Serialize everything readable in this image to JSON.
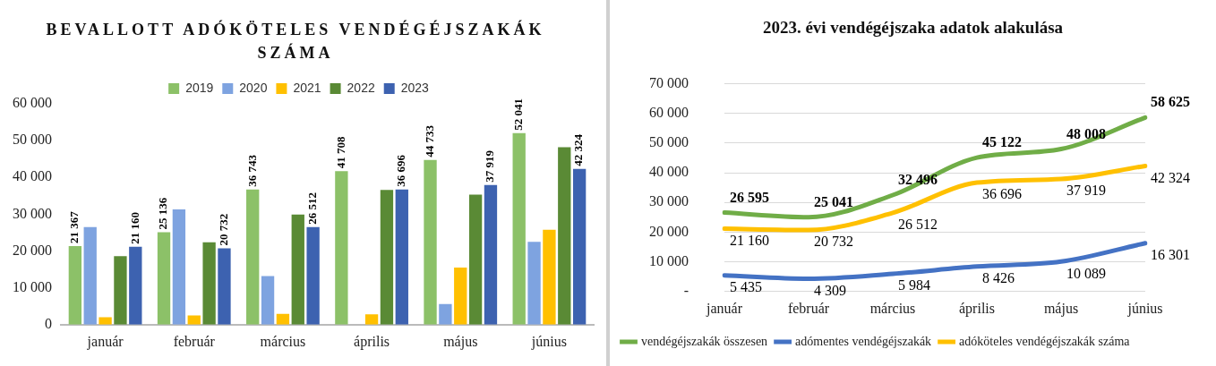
{
  "chart_data": [
    {
      "type": "bar",
      "title": "BEVALLOTT ADÓKÖTELES VENDÉGÉJSZAKÁK SZÁMA",
      "categories": [
        "január",
        "február",
        "március",
        "április",
        "május",
        "június"
      ],
      "series": [
        {
          "name": "2019",
          "color": "#8cc168",
          "values": [
            21367,
            25136,
            36743,
            41708,
            44733,
            52041
          ],
          "value_labels": [
            "21 367",
            "25 136",
            "36 743",
            "41 708",
            "44 733",
            "52 041"
          ]
        },
        {
          "name": "2020",
          "color": "#7ea3e0",
          "values": [
            26500,
            31300,
            13200,
            0,
            5600,
            22500
          ]
        },
        {
          "name": "2021",
          "color": "#ffc000",
          "values": [
            2000,
            2500,
            2900,
            2800,
            15500,
            25800
          ]
        },
        {
          "name": "2022",
          "color": "#5a8a35",
          "values": [
            18600,
            22400,
            29900,
            36600,
            35300,
            48200
          ]
        },
        {
          "name": "2023",
          "color": "#3d62b0",
          "values": [
            21160,
            20732,
            26512,
            36696,
            37919,
            42324
          ],
          "value_labels": [
            "21 160",
            "20 732",
            "26 512",
            "36 696",
            "37 919",
            "42 324"
          ]
        }
      ],
      "ylim": [
        0,
        60000
      ],
      "yticks": [
        0,
        {
          "value": 10000,
          "label": "10 000"
        },
        {
          "value": 20000,
          "label": "20 000"
        },
        {
          "value": 30000,
          "label": "30 000"
        },
        {
          "value": 40000,
          "label": "40 000"
        },
        {
          "value": 50000,
          "label": "50 000"
        },
        {
          "value": 60000,
          "label": "60 000"
        }
      ],
      "grid": false,
      "legend": "top"
    },
    {
      "type": "line",
      "title": "2023. évi vendégéjszaka adatok alakulása",
      "categories": [
        "január",
        "február",
        "március",
        "április",
        "május",
        "június"
      ],
      "series": [
        {
          "name": "vendégéjszakák összesen",
          "color": "#70ad47",
          "values": [
            26595,
            25041,
            32496,
            45122,
            48008,
            58625
          ],
          "value_labels": [
            "26 595",
            "25 041",
            "32 496",
            "45 122",
            "48 008",
            "58 625"
          ]
        },
        {
          "name": "adómentes vendégéjszakák",
          "color": "#4472c4",
          "values": [
            5435,
            4309,
            5984,
            8426,
            10089,
            16301
          ],
          "value_labels": [
            "5 435",
            "4 309",
            "5 984",
            "8 426",
            "10 089",
            "16 301"
          ]
        },
        {
          "name": "adóköteles vendégéjszakák száma",
          "color": "#ffc000",
          "values": [
            21160,
            20732,
            26512,
            36696,
            37919,
            42324
          ],
          "value_labels": [
            "21 160",
            "20 732",
            "26 512",
            "36 696",
            "37 919",
            "42 324"
          ]
        }
      ],
      "ylim": [
        0,
        70000
      ],
      "yticks": [
        {
          "value": 0,
          "label": "-"
        },
        {
          "value": 10000,
          "label": "10 000"
        },
        {
          "value": 20000,
          "label": "20 000"
        },
        {
          "value": 30000,
          "label": "30 000"
        },
        {
          "value": 40000,
          "label": "40 000"
        },
        {
          "value": 50000,
          "label": "50 000"
        },
        {
          "value": 60000,
          "label": "60 000"
        },
        {
          "value": 70000,
          "label": "70 000"
        }
      ],
      "grid": "y",
      "legend": "bottom left",
      "marker": "none"
    }
  ]
}
